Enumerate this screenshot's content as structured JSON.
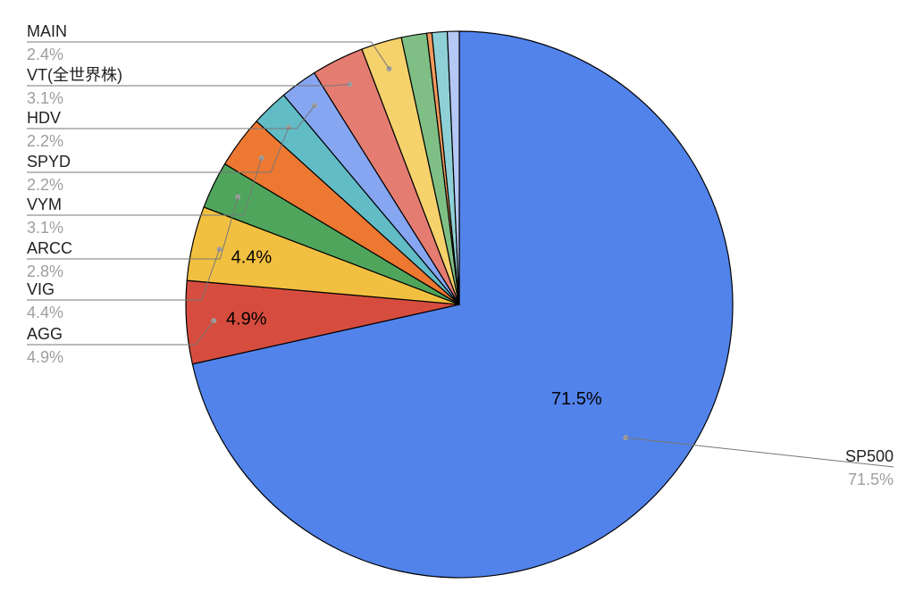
{
  "chart_data": {
    "type": "pie",
    "start_angle_deg": 0,
    "direction": "clockwise",
    "slices": [
      {
        "name": "SP500",
        "value": 71.5,
        "label": "71.5%",
        "color": "#5283eb",
        "inside_label": "71.5%",
        "label_side": "right"
      },
      {
        "name": "AGG",
        "value": 4.9,
        "label": "4.9%",
        "color": "#d64d3f",
        "inside_label": "4.9%",
        "label_side": "left"
      },
      {
        "name": "VIG",
        "value": 4.4,
        "label": "4.4%",
        "color": "#f2c041",
        "inside_label": "4.4%",
        "label_side": "left"
      },
      {
        "name": "ARCC",
        "value": 2.8,
        "label": "2.8%",
        "color": "#4fa55c",
        "inside_label": "",
        "label_side": "left"
      },
      {
        "name": "VYM",
        "value": 3.1,
        "label": "3.1%",
        "color": "#ed7832",
        "inside_label": "",
        "label_side": "left"
      },
      {
        "name": "SPYD",
        "value": 2.2,
        "label": "2.2%",
        "color": "#62bcc6",
        "inside_label": "",
        "label_side": "left"
      },
      {
        "name": "HDV",
        "value": 2.2,
        "label": "2.2%",
        "color": "#86a6f1",
        "inside_label": "",
        "label_side": "left"
      },
      {
        "name": "VT(全世界株)",
        "value": 3.1,
        "label": "3.1%",
        "color": "#e47c72",
        "inside_label": "",
        "label_side": "left"
      },
      {
        "name": "MAIN",
        "value": 2.4,
        "label": "2.4%",
        "color": "#f5d26c",
        "inside_label": "",
        "label_side": "left"
      },
      {
        "name": "",
        "value": 1.5,
        "label": "",
        "color": "#7fbf85",
        "inside_label": "",
        "label_side": "none"
      },
      {
        "name": "",
        "value": 0.3,
        "label": "",
        "color": "#f29a5c",
        "inside_label": "",
        "label_side": "none"
      },
      {
        "name": "",
        "value": 0.9,
        "label": "",
        "color": "#8fd0d6",
        "inside_label": "",
        "label_side": "none"
      },
      {
        "name": "",
        "value": 0.7,
        "label": "",
        "color": "#b5c8f5",
        "inside_label": "",
        "label_side": "none"
      }
    ]
  }
}
